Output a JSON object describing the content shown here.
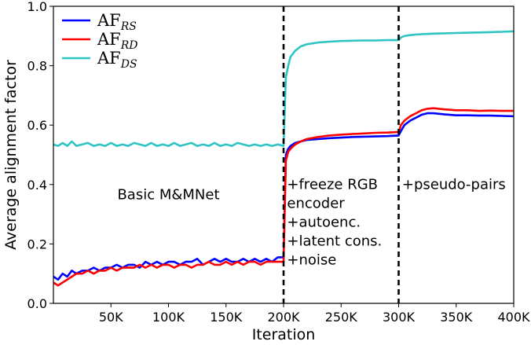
{
  "chart_data": {
    "type": "line",
    "title": "",
    "xlabel": "Iteration",
    "ylabel": "Average alignment factor",
    "xlim": [
      0,
      400000
    ],
    "ylim": [
      0.0,
      1.0
    ],
    "xticks": [
      50000,
      100000,
      150000,
      200000,
      250000,
      300000,
      350000,
      400000
    ],
    "xtick_labels": [
      "50K",
      "100K",
      "150K",
      "200K",
      "250K",
      "300K",
      "350K",
      "400K"
    ],
    "yticks": [
      0.0,
      0.2,
      0.4,
      0.6,
      0.8,
      1.0
    ],
    "ytick_labels": [
      "0.0",
      "0.2",
      "0.4",
      "0.6",
      "0.8",
      "1.0"
    ],
    "grid": false,
    "legend_position": "top-left",
    "vlines": [
      200000,
      300000
    ],
    "annotations": [
      {
        "lines": [
          "Basic M&MNet"
        ],
        "x": 100000,
        "y": 0.35
      },
      {
        "lines": [
          "+freeze RGB",
          "encoder",
          "+autoenc.",
          "+latent cons.",
          "+noise"
        ],
        "x": 203000,
        "y": 0.385
      },
      {
        "lines": [
          "+pseudo-pairs"
        ],
        "x": 303000,
        "y": 0.385
      }
    ],
    "series": [
      {
        "name": "AF",
        "subscript": "RS",
        "color": "#0000ff",
        "x": [
          0,
          4000,
          8000,
          12000,
          16000,
          20000,
          25000,
          30000,
          35000,
          40000,
          45000,
          50000,
          55000,
          60000,
          65000,
          70000,
          75000,
          80000,
          85000,
          90000,
          95000,
          100000,
          105000,
          110000,
          115000,
          120000,
          125000,
          130000,
          135000,
          140000,
          145000,
          150000,
          155000,
          160000,
          165000,
          170000,
          175000,
          180000,
          185000,
          190000,
          195000,
          200000,
          202000,
          204000,
          206000,
          210000,
          215000,
          220000,
          230000,
          240000,
          250000,
          260000,
          270000,
          280000,
          290000,
          300000,
          302000,
          305000,
          310000,
          315000,
          320000,
          325000,
          330000,
          340000,
          350000,
          360000,
          370000,
          380000,
          390000,
          400000
        ],
        "values": [
          0.09,
          0.08,
          0.1,
          0.09,
          0.11,
          0.1,
          0.11,
          0.11,
          0.12,
          0.11,
          0.12,
          0.12,
          0.13,
          0.12,
          0.13,
          0.13,
          0.12,
          0.14,
          0.13,
          0.14,
          0.13,
          0.14,
          0.14,
          0.13,
          0.14,
          0.14,
          0.15,
          0.13,
          0.14,
          0.15,
          0.14,
          0.15,
          0.14,
          0.14,
          0.15,
          0.14,
          0.15,
          0.14,
          0.15,
          0.14,
          0.155,
          0.155,
          0.5,
          0.52,
          0.53,
          0.54,
          0.545,
          0.55,
          0.553,
          0.556,
          0.558,
          0.56,
          0.561,
          0.562,
          0.563,
          0.565,
          0.58,
          0.6,
          0.615,
          0.625,
          0.635,
          0.64,
          0.64,
          0.636,
          0.633,
          0.633,
          0.632,
          0.632,
          0.631,
          0.63
        ]
      },
      {
        "name": "AF",
        "subscript": "RD",
        "color": "#ff0000",
        "x": [
          0,
          4000,
          8000,
          12000,
          16000,
          20000,
          25000,
          30000,
          35000,
          40000,
          45000,
          50000,
          55000,
          60000,
          65000,
          70000,
          75000,
          80000,
          85000,
          90000,
          95000,
          100000,
          105000,
          110000,
          115000,
          120000,
          125000,
          130000,
          135000,
          140000,
          145000,
          150000,
          155000,
          160000,
          165000,
          170000,
          175000,
          180000,
          185000,
          190000,
          195000,
          200000,
          202000,
          204000,
          206000,
          210000,
          215000,
          220000,
          230000,
          240000,
          250000,
          260000,
          270000,
          280000,
          290000,
          300000,
          302000,
          305000,
          310000,
          315000,
          320000,
          325000,
          330000,
          340000,
          350000,
          360000,
          370000,
          380000,
          390000,
          400000
        ],
        "values": [
          0.07,
          0.06,
          0.07,
          0.08,
          0.09,
          0.1,
          0.1,
          0.11,
          0.1,
          0.11,
          0.11,
          0.12,
          0.11,
          0.12,
          0.12,
          0.12,
          0.13,
          0.12,
          0.13,
          0.12,
          0.13,
          0.13,
          0.12,
          0.13,
          0.13,
          0.12,
          0.13,
          0.13,
          0.14,
          0.13,
          0.13,
          0.14,
          0.13,
          0.14,
          0.13,
          0.14,
          0.14,
          0.13,
          0.14,
          0.14,
          0.14,
          0.14,
          0.48,
          0.51,
          0.52,
          0.535,
          0.545,
          0.553,
          0.56,
          0.565,
          0.568,
          0.57,
          0.572,
          0.574,
          0.575,
          0.577,
          0.6,
          0.615,
          0.63,
          0.64,
          0.65,
          0.655,
          0.657,
          0.653,
          0.65,
          0.65,
          0.648,
          0.649,
          0.648,
          0.648
        ]
      },
      {
        "name": "AF",
        "subscript": "DS",
        "color": "#2ec4c4",
        "x": [
          0,
          4000,
          8000,
          12000,
          16000,
          20000,
          25000,
          30000,
          35000,
          40000,
          45000,
          50000,
          55000,
          60000,
          65000,
          70000,
          75000,
          80000,
          85000,
          90000,
          95000,
          100000,
          105000,
          110000,
          115000,
          120000,
          125000,
          130000,
          135000,
          140000,
          145000,
          150000,
          155000,
          160000,
          165000,
          170000,
          175000,
          180000,
          185000,
          190000,
          195000,
          200000,
          202000,
          204000,
          206000,
          210000,
          215000,
          220000,
          230000,
          240000,
          250000,
          260000,
          270000,
          280000,
          290000,
          300000,
          302000,
          305000,
          310000,
          315000,
          320000,
          325000,
          330000,
          340000,
          350000,
          360000,
          370000,
          380000,
          390000,
          400000
        ],
        "values": [
          0.535,
          0.53,
          0.54,
          0.53,
          0.545,
          0.53,
          0.535,
          0.54,
          0.53,
          0.535,
          0.53,
          0.54,
          0.53,
          0.535,
          0.53,
          0.54,
          0.535,
          0.53,
          0.54,
          0.53,
          0.535,
          0.53,
          0.54,
          0.53,
          0.535,
          0.54,
          0.53,
          0.535,
          0.53,
          0.54,
          0.53,
          0.535,
          0.53,
          0.54,
          0.535,
          0.53,
          0.535,
          0.53,
          0.535,
          0.53,
          0.535,
          0.53,
          0.76,
          0.8,
          0.83,
          0.85,
          0.865,
          0.872,
          0.878,
          0.881,
          0.883,
          0.884,
          0.885,
          0.885,
          0.886,
          0.886,
          0.895,
          0.9,
          0.903,
          0.905,
          0.906,
          0.907,
          0.908,
          0.909,
          0.91,
          0.911,
          0.912,
          0.913,
          0.914,
          0.916
        ]
      }
    ]
  }
}
